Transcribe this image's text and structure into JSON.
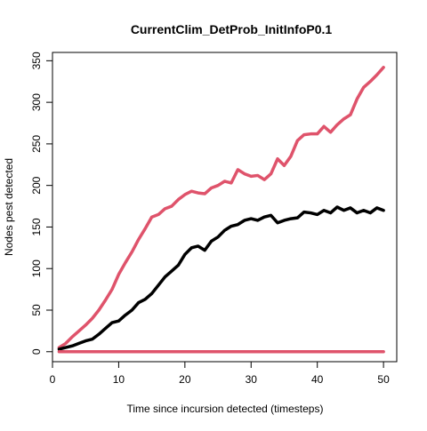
{
  "chart_data": {
    "type": "line",
    "title": "CurrentClim_DetProb_InitInfoP0.1",
    "xlabel": "Time since incursion detected (timesteps)",
    "ylabel": "Nodes pest detected",
    "xlim": [
      0,
      52
    ],
    "ylim": [
      -12,
      360
    ],
    "xticks": [
      0,
      10,
      20,
      30,
      40,
      50
    ],
    "yticks": [
      0,
      50,
      100,
      150,
      200,
      250,
      300,
      350
    ],
    "grid": false,
    "legend": "none",
    "x": [
      1,
      2,
      3,
      4,
      5,
      6,
      7,
      8,
      9,
      10,
      11,
      12,
      13,
      14,
      15,
      16,
      17,
      18,
      19,
      20,
      21,
      22,
      23,
      24,
      25,
      26,
      27,
      28,
      29,
      30,
      31,
      32,
      33,
      34,
      35,
      36,
      37,
      38,
      39,
      40,
      41,
      42,
      43,
      44,
      45,
      46,
      47,
      48,
      49,
      50
    ],
    "series": [
      {
        "color": "#DF536B",
        "values": [
          5,
          10,
          18,
          25,
          32,
          40,
          50,
          62,
          75,
          93,
          107,
          120,
          135,
          148,
          162,
          165,
          172,
          175,
          183,
          189,
          193,
          191,
          190,
          197,
          200,
          205,
          203,
          219,
          214,
          211,
          212,
          207,
          214,
          232,
          224,
          235,
          254,
          261,
          262,
          262,
          271,
          264,
          273,
          280,
          285,
          304,
          318,
          325,
          333,
          342
        ]
      },
      {
        "color": "#000000",
        "values": [
          3,
          5,
          7,
          10,
          13,
          15,
          21,
          28,
          35,
          37,
          44,
          50,
          59,
          63,
          70,
          80,
          90,
          97,
          104,
          117,
          125,
          127,
          122,
          133,
          138,
          146,
          151,
          153,
          158,
          160,
          158,
          162,
          164,
          155,
          158,
          160,
          161,
          168,
          167,
          165,
          170,
          167,
          174,
          170,
          173,
          167,
          170,
          167,
          173,
          170
        ]
      },
      {
        "color": "#DF536B",
        "values": [
          0,
          0,
          0,
          0,
          0,
          0,
          0,
          0,
          0,
          0,
          0,
          0,
          0,
          0,
          0,
          0,
          0,
          0,
          0,
          0,
          0,
          0,
          0,
          0,
          0,
          0,
          0,
          0,
          0,
          0,
          0,
          0,
          0,
          0,
          0,
          0,
          0,
          0,
          0,
          0,
          0,
          0,
          0,
          0,
          0,
          0,
          0,
          0,
          0,
          0
        ]
      }
    ]
  }
}
